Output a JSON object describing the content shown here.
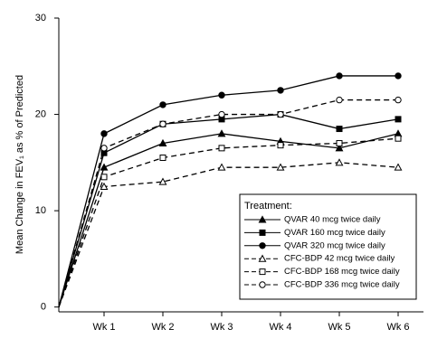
{
  "chart_data": {
    "type": "line",
    "y_label": "Mean Change in FEV₁ as % of Predicted",
    "categories": [
      null,
      "Wk 1",
      "Wk 2",
      "Wk 3",
      "Wk 4",
      "Wk 5",
      "Wk 6"
    ],
    "ylim": [
      -0.5,
      30
    ],
    "yticks": [
      0,
      10,
      20,
      30
    ],
    "legend_title": "Treatment:",
    "legend": "lower right",
    "series": [
      {
        "name": "QVAR 40 mcg twice daily",
        "color": "#000000",
        "marker": "triangle",
        "filled": true,
        "dashed": false,
        "values": [
          0,
          14.5,
          17,
          18,
          17.2,
          16.5,
          18
        ]
      },
      {
        "name": "QVAR 160 mcg twice daily",
        "color": "#000000",
        "marker": "square",
        "filled": true,
        "dashed": false,
        "values": [
          0,
          16,
          19,
          19.5,
          20,
          18.5,
          19.5
        ]
      },
      {
        "name": "QVAR 320 mcg twice daily",
        "color": "#000000",
        "marker": "circle",
        "filled": true,
        "dashed": false,
        "values": [
          0,
          18,
          21,
          22,
          22.5,
          24,
          24
        ]
      },
      {
        "name": "CFC-BDP 42 mcg twice daily",
        "color": "#000000",
        "marker": "triangle",
        "filled": false,
        "dashed": true,
        "values": [
          0,
          12.5,
          13,
          14.5,
          14.5,
          15,
          14.5
        ]
      },
      {
        "name": "CFC-BDP 168 mcg twice daily",
        "color": "#000000",
        "marker": "square",
        "filled": false,
        "dashed": true,
        "values": [
          0,
          13.5,
          15.5,
          16.5,
          16.8,
          17,
          17.5
        ]
      },
      {
        "name": "CFC-BDP 336 mcg twice daily",
        "color": "#000000",
        "marker": "circle",
        "filled": false,
        "dashed": true,
        "values": [
          0,
          16.5,
          19,
          20,
          20,
          21.5,
          21.5
        ]
      }
    ]
  }
}
